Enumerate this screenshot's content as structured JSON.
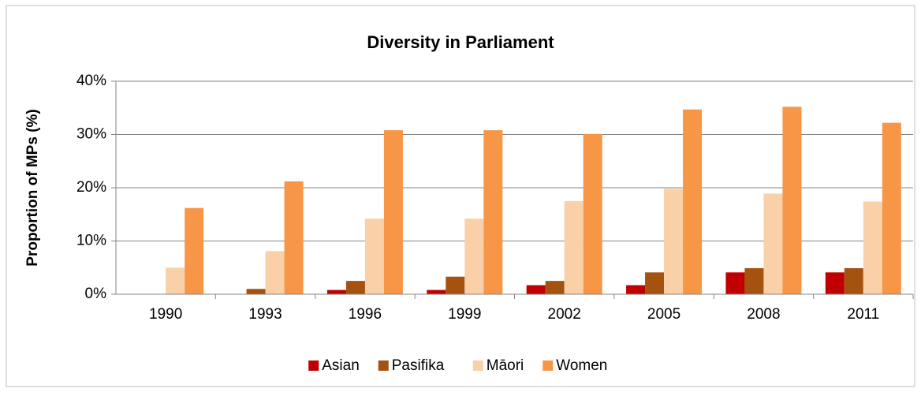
{
  "chart_data": {
    "type": "bar",
    "title": "Diversity in Parliament",
    "y_label": "Proportion of MPs (%)",
    "categories": [
      "1990",
      "1993",
      "1996",
      "1999",
      "2002",
      "2005",
      "2008",
      "2011"
    ],
    "series": [
      {
        "name": "Asian",
        "color": "#c00000",
        "values": [
          0,
          0,
          0.8,
          0.8,
          1.7,
          1.7,
          4.1,
          4.1
        ]
      },
      {
        "name": "Pasifika",
        "color": "#a5520f",
        "values": [
          0,
          1.0,
          2.5,
          3.3,
          2.5,
          4.1,
          4.9,
          4.9
        ]
      },
      {
        "name": "Māori",
        "color": "#fad0a8",
        "values": [
          5.0,
          8.1,
          14.2,
          14.2,
          17.5,
          19.8,
          18.9,
          17.4
        ]
      },
      {
        "name": "Women",
        "color": "#f79646",
        "values": [
          16.2,
          21.2,
          30.8,
          30.8,
          30.1,
          34.7,
          35.2,
          32.2
        ]
      }
    ],
    "ylim": [
      0,
      40
    ],
    "yticks": [
      {
        "value": 0,
        "label": "0%"
      },
      {
        "value": 10,
        "label": "10%"
      },
      {
        "value": 20,
        "label": "20%"
      },
      {
        "value": 30,
        "label": "30%"
      },
      {
        "value": 40,
        "label": "40%"
      }
    ],
    "grid": true,
    "legend": "bottom"
  }
}
